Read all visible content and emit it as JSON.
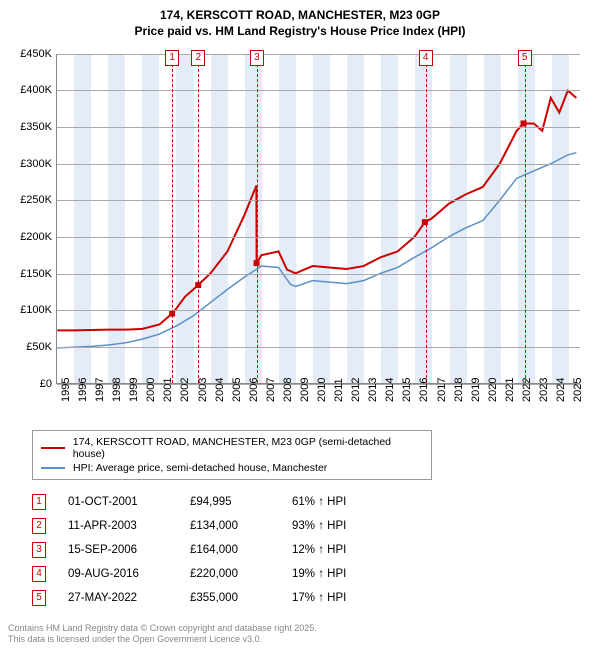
{
  "header": {
    "address": "174, KERSCOTT ROAD, MANCHESTER, M23 0GP",
    "subtitle": "Price paid vs. HM Land Registry's House Price Index (HPI)"
  },
  "chart": {
    "type": "line",
    "background_color": "#ffffff",
    "grid_color": "#a9a9a9",
    "band_color": "#e4edf7",
    "ylim": [
      0,
      450000
    ],
    "ytick_step": 50000,
    "yticks": [
      {
        "v": 0,
        "label": "£0"
      },
      {
        "v": 50000,
        "label": "£50K"
      },
      {
        "v": 100000,
        "label": "£100K"
      },
      {
        "v": 150000,
        "label": "£150K"
      },
      {
        "v": 200000,
        "label": "£200K"
      },
      {
        "v": 250000,
        "label": "£250K"
      },
      {
        "v": 300000,
        "label": "£300K"
      },
      {
        "v": 350000,
        "label": "£350K"
      },
      {
        "v": 400000,
        "label": "£400K"
      },
      {
        "v": 450000,
        "label": "£450K"
      }
    ],
    "xlim": [
      1995,
      2025.7
    ],
    "xticks": [
      1995,
      1996,
      1997,
      1998,
      1999,
      2000,
      2001,
      2002,
      2003,
      2004,
      2005,
      2006,
      2007,
      2008,
      2009,
      2010,
      2011,
      2012,
      2013,
      2014,
      2015,
      2016,
      2017,
      2018,
      2019,
      2020,
      2021,
      2022,
      2023,
      2024,
      2025
    ],
    "series": [
      {
        "name": "174, KERSCOTT ROAD, MANCHESTER, M23 0GP (semi-detached house)",
        "color": "#cc0000",
        "line_width": 2,
        "data": [
          [
            1995,
            72000
          ],
          [
            1996,
            72000
          ],
          [
            1997,
            72500
          ],
          [
            1998,
            73000
          ],
          [
            1999,
            73000
          ],
          [
            2000,
            74000
          ],
          [
            2001,
            80000
          ],
          [
            2001.75,
            94995
          ],
          [
            2002,
            102000
          ],
          [
            2002.5,
            118000
          ],
          [
            2003,
            128000
          ],
          [
            2003.28,
            134000
          ],
          [
            2004,
            150000
          ],
          [
            2005,
            180000
          ],
          [
            2006,
            230000
          ],
          [
            2006.7,
            270000
          ],
          [
            2006.71,
            164000
          ],
          [
            2007,
            175000
          ],
          [
            2008,
            180000
          ],
          [
            2008.5,
            155000
          ],
          [
            2009,
            150000
          ],
          [
            2010,
            160000
          ],
          [
            2011,
            158000
          ],
          [
            2012,
            156000
          ],
          [
            2013,
            160000
          ],
          [
            2014,
            172000
          ],
          [
            2015,
            180000
          ],
          [
            2016,
            200000
          ],
          [
            2016.6,
            220000
          ],
          [
            2017,
            225000
          ],
          [
            2018,
            245000
          ],
          [
            2019,
            258000
          ],
          [
            2020,
            268000
          ],
          [
            2021,
            300000
          ],
          [
            2022,
            345000
          ],
          [
            2022.4,
            355000
          ],
          [
            2023,
            355000
          ],
          [
            2023.5,
            345000
          ],
          [
            2024,
            390000
          ],
          [
            2024.5,
            370000
          ],
          [
            2025,
            400000
          ],
          [
            2025.5,
            390000
          ]
        ]
      },
      {
        "name": "HPI: Average price, semi-detached house, Manchester",
        "color": "#5b8fc7",
        "line_width": 1.5,
        "data": [
          [
            1995,
            48000
          ],
          [
            1996,
            49000
          ],
          [
            1997,
            50000
          ],
          [
            1998,
            52000
          ],
          [
            1999,
            55000
          ],
          [
            2000,
            60000
          ],
          [
            2001,
            67000
          ],
          [
            2002,
            78000
          ],
          [
            2003,
            92000
          ],
          [
            2004,
            110000
          ],
          [
            2005,
            128000
          ],
          [
            2006,
            145000
          ],
          [
            2007,
            160000
          ],
          [
            2008,
            158000
          ],
          [
            2008.7,
            135000
          ],
          [
            2009,
            132000
          ],
          [
            2010,
            140000
          ],
          [
            2011,
            138000
          ],
          [
            2012,
            136000
          ],
          [
            2013,
            140000
          ],
          [
            2014,
            150000
          ],
          [
            2015,
            158000
          ],
          [
            2016,
            172000
          ],
          [
            2017,
            185000
          ],
          [
            2018,
            200000
          ],
          [
            2019,
            212000
          ],
          [
            2020,
            222000
          ],
          [
            2021,
            250000
          ],
          [
            2022,
            280000
          ],
          [
            2023,
            290000
          ],
          [
            2024,
            300000
          ],
          [
            2025,
            312000
          ],
          [
            2025.5,
            315000
          ]
        ]
      }
    ],
    "markers": [
      {
        "n": "1",
        "x": 2001.75,
        "y": 94995
      },
      {
        "n": "2",
        "x": 2003.28,
        "y": 134000
      },
      {
        "n": "3",
        "x": 2006.71,
        "y": 164000
      },
      {
        "n": "4",
        "x": 2016.6,
        "y": 220000
      },
      {
        "n": "5",
        "x": 2022.4,
        "y": 355000
      }
    ],
    "marker_color": "#cc0000",
    "tick_fontsize": 11
  },
  "legend": {
    "items": [
      {
        "label": "174, KERSCOTT ROAD, MANCHESTER, M23 0GP (semi-detached house)",
        "color": "#cc0000"
      },
      {
        "label": "HPI: Average price, semi-detached house, Manchester",
        "color": "#5b8fc7"
      }
    ]
  },
  "sales": [
    {
      "n": "1",
      "date": "01-OCT-2001",
      "price": "£94,995",
      "delta": "61% ↑ HPI"
    },
    {
      "n": "2",
      "date": "11-APR-2003",
      "price": "£134,000",
      "delta": "93% ↑ HPI"
    },
    {
      "n": "3",
      "date": "15-SEP-2006",
      "price": "£164,000",
      "delta": "12% ↑ HPI"
    },
    {
      "n": "4",
      "date": "09-AUG-2016",
      "price": "£220,000",
      "delta": "19% ↑ HPI"
    },
    {
      "n": "5",
      "date": "27-MAY-2022",
      "price": "£355,000",
      "delta": "17% ↑ HPI"
    }
  ],
  "footer": {
    "line1": "Contains HM Land Registry data © Crown copyright and database right 2025.",
    "line2": "This data is licensed under the Open Government Licence v3.0."
  }
}
